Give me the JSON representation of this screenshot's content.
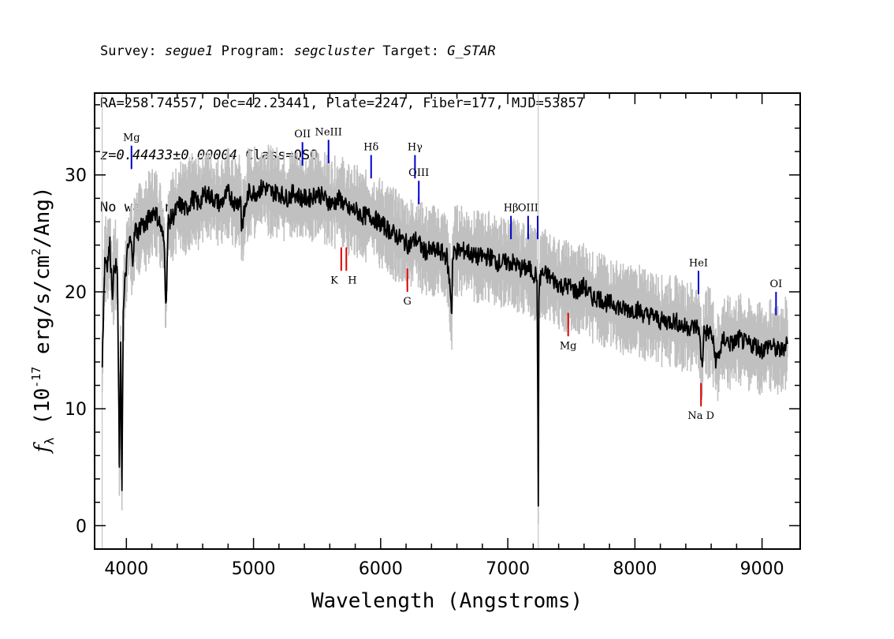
{
  "header": {
    "line1": {
      "survey_label": "Survey:",
      "survey": "segue1",
      "program_label": "Program:",
      "program": "segcluster",
      "target_label": "Target:",
      "target": "G_STAR"
    },
    "line2": "RA=258.74557, Dec=42.23441, Plate=2247, Fiber=177, MJD=53857",
    "line3": {
      "redshift": "z=0.44433±0.00004",
      "class": "Class=QSO"
    },
    "line4": "No warnings."
  },
  "colors": {
    "spectrum": "#000000",
    "error_band": "#c0c0c0",
    "emission_marker": "#0000cc",
    "absorption_marker": "#dd0000",
    "axis": "#000000"
  },
  "chart_data": {
    "type": "line",
    "xlabel": "Wavelength (Angstroms)",
    "ylabel": "f_λ (10^-17 erg/s/cm²/Ang)",
    "xlim": [
      3750,
      9300
    ],
    "ylim": [
      -2,
      37
    ],
    "xticks": [
      4000,
      5000,
      6000,
      7000,
      8000,
      9000
    ],
    "yticks": [
      0,
      10,
      20,
      30
    ],
    "grid": false,
    "vertical_reference_lines": [
      3810,
      7240
    ],
    "series": [
      {
        "style": "spectrum",
        "x": [
          3810,
          3830,
          3850,
          3870,
          3890,
          3910,
          3930,
          3945,
          3955,
          3965,
          3975,
          3990,
          4010,
          4030,
          4050,
          4070,
          4090,
          4120,
          4150,
          4180,
          4220,
          4260,
          4300,
          4310,
          4330,
          4370,
          4420,
          4470,
          4520,
          4570,
          4620,
          4680,
          4740,
          4800,
          4860,
          4900,
          4905,
          4960,
          5020,
          5080,
          5140,
          5200,
          5260,
          5320,
          5380,
          5440,
          5500,
          5560,
          5620,
          5680,
          5740,
          5800,
          5860,
          5920,
          5980,
          6040,
          6100,
          6160,
          6220,
          6280,
          6340,
          6400,
          6460,
          6520,
          6550,
          6560,
          6565,
          6580,
          6620,
          6680,
          6740,
          6800,
          6860,
          6920,
          6980,
          7040,
          7100,
          7160,
          7210,
          7230,
          7240,
          7245,
          7260,
          7300,
          7360,
          7420,
          7480,
          7540,
          7600,
          7660,
          7720,
          7780,
          7840,
          7900,
          7960,
          8020,
          8080,
          8140,
          8200,
          8260,
          8320,
          8380,
          8440,
          8500,
          8530,
          8540,
          8560,
          8600,
          8640,
          8700,
          8760,
          8820,
          8880,
          8940,
          9000,
          9060,
          9120,
          9160,
          9200
        ],
        "y": [
          14.0,
          23.0,
          22.5,
          24.0,
          20.0,
          22.5,
          21.5,
          5.0,
          15.0,
          3.5,
          18.0,
          21.0,
          23.5,
          24.5,
          23.0,
          25.5,
          25.0,
          26.0,
          25.5,
          26.5,
          27.0,
          26.0,
          24.0,
          18.5,
          26.0,
          26.5,
          27.5,
          27.0,
          28.0,
          27.5,
          28.5,
          28.0,
          27.5,
          28.5,
          27.5,
          28.0,
          25.5,
          28.5,
          28.5,
          29.0,
          28.5,
          28.5,
          28.0,
          28.5,
          28.0,
          28.0,
          28.5,
          28.0,
          27.5,
          28.0,
          27.0,
          27.0,
          26.5,
          26.5,
          26.0,
          25.5,
          25.0,
          24.5,
          24.0,
          24.5,
          23.5,
          23.5,
          23.5,
          23.0,
          20.0,
          18.0,
          22.5,
          23.5,
          23.5,
          23.5,
          23.0,
          23.0,
          23.0,
          22.5,
          22.5,
          22.5,
          22.0,
          22.0,
          21.5,
          21.5,
          2.0,
          20.0,
          21.5,
          21.5,
          21.0,
          20.5,
          20.5,
          20.0,
          20.5,
          19.5,
          19.5,
          19.0,
          19.0,
          18.5,
          18.5,
          18.5,
          18.0,
          18.0,
          17.5,
          17.5,
          17.5,
          17.0,
          17.0,
          17.0,
          13.5,
          16.5,
          16.5,
          16.5,
          14.0,
          16.0,
          15.5,
          16.0,
          15.5,
          15.5,
          15.0,
          15.5,
          15.0,
          15.0,
          16.0
        ]
      }
    ],
    "line_markers": [
      {
        "label": "Mg",
        "wavelength": 4040,
        "type": "emission",
        "y_top": 32.5,
        "y_bottom": 30.5,
        "label_side": "top"
      },
      {
        "label": "OII",
        "wavelength": 5385,
        "type": "emission",
        "y_top": 32.8,
        "y_bottom": 30.8,
        "label_side": "top"
      },
      {
        "label": "NeIII",
        "wavelength": 5590,
        "type": "emission",
        "y_top": 33.0,
        "y_bottom": 31.0,
        "label_side": "top"
      },
      {
        "label": "Hδ",
        "wavelength": 5925,
        "type": "emission",
        "y_top": 31.7,
        "y_bottom": 29.7,
        "label_side": "top"
      },
      {
        "label": "Hγ",
        "wavelength": 6270,
        "type": "emission",
        "y_top": 31.7,
        "y_bottom": 29.7,
        "label_side": "top"
      },
      {
        "label": "OIII",
        "wavelength": 6300,
        "type": "emission",
        "y_top": 29.5,
        "y_bottom": 27.5,
        "label_side": "top"
      },
      {
        "label": "Hβ",
        "wavelength": 7025,
        "type": "emission",
        "y_top": 26.5,
        "y_bottom": 24.5,
        "label_side": "top"
      },
      {
        "label": "OIII",
        "wavelength": 7160,
        "type": "emission",
        "y_top": 26.5,
        "y_bottom": 24.5,
        "label_side": "top"
      },
      {
        "label": "OIII",
        "wavelength": 7235,
        "type": "emission",
        "y_top": 26.5,
        "y_bottom": 24.5,
        "label_side": "none"
      },
      {
        "label": "HeI",
        "wavelength": 8500,
        "type": "emission",
        "y_top": 21.8,
        "y_bottom": 19.8,
        "label_side": "top"
      },
      {
        "label": "OI",
        "wavelength": 9110,
        "type": "emission",
        "y_top": 20.0,
        "y_bottom": 18.0,
        "label_side": "top"
      },
      {
        "label": "K",
        "wavelength": 5690,
        "type": "absorption",
        "y_top": 23.8,
        "y_bottom": 21.8,
        "label_side": "bottom"
      },
      {
        "label": "H",
        "wavelength": 5730,
        "type": "absorption",
        "y_top": 23.8,
        "y_bottom": 21.8,
        "label_side": "bottom"
      },
      {
        "label": "G",
        "wavelength": 6210,
        "type": "absorption",
        "y_top": 22.0,
        "y_bottom": 20.0,
        "label_side": "bottom"
      },
      {
        "label": "Mg",
        "wavelength": 7475,
        "type": "absorption",
        "y_top": 18.2,
        "y_bottom": 16.2,
        "label_side": "bottom"
      },
      {
        "label": "Na D",
        "wavelength": 8520,
        "type": "absorption",
        "y_top": 12.2,
        "y_bottom": 10.2,
        "label_side": "bottom"
      }
    ]
  }
}
